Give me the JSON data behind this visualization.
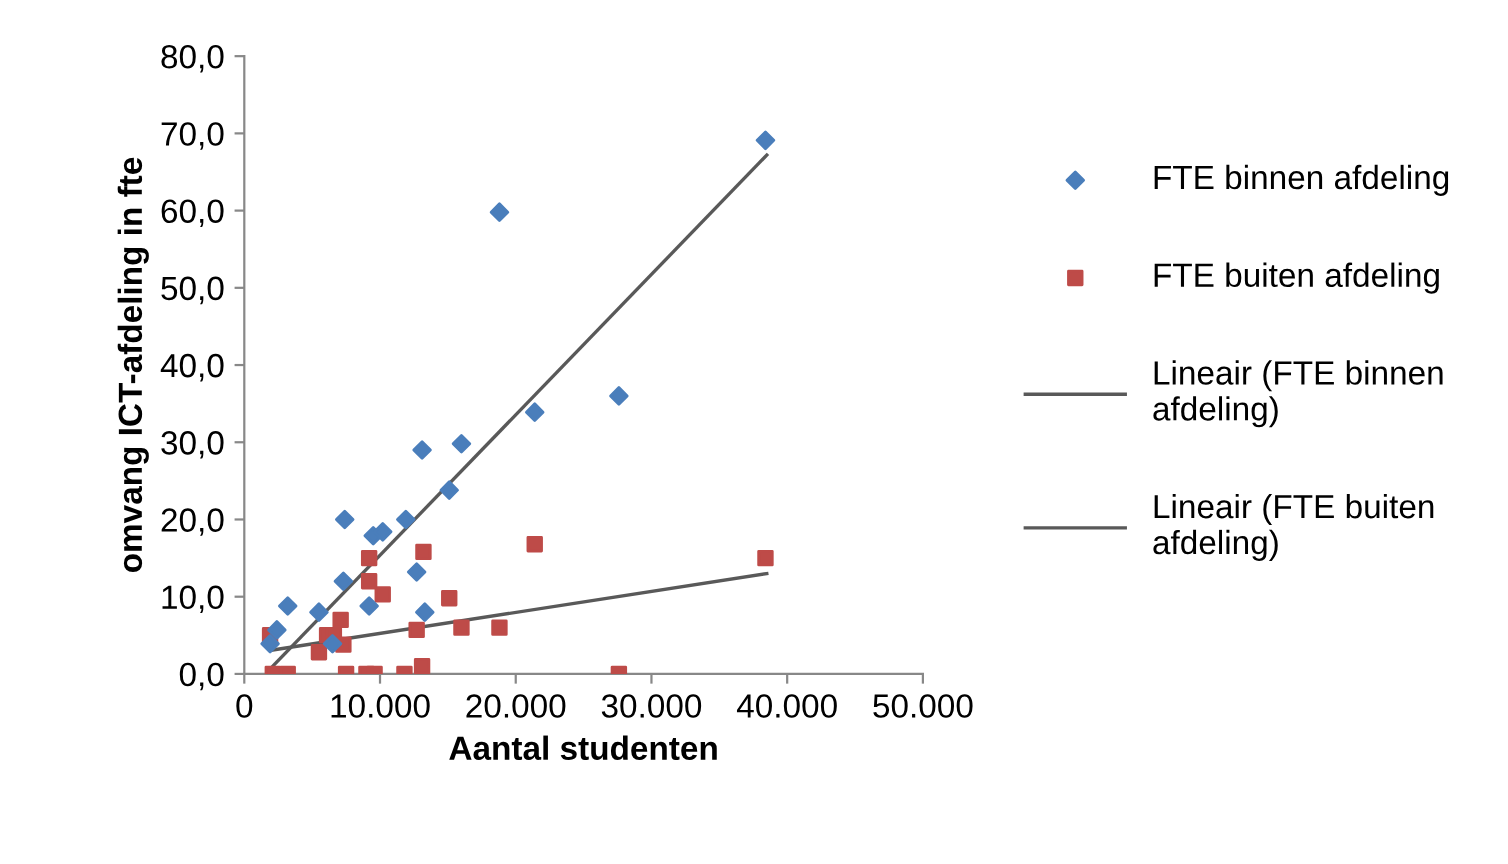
{
  "chart_data": {
    "type": "scatter",
    "xlabel": "Aantal studenten",
    "ylabel": "omvang ICT-afdeling in fte",
    "xlim": [
      0,
      50000
    ],
    "ylim": [
      0,
      80
    ],
    "xticks": [
      {
        "value": 0,
        "label": "0"
      },
      {
        "value": 10000,
        "label": "10.000"
      },
      {
        "value": 20000,
        "label": "20.000"
      },
      {
        "value": 30000,
        "label": "30.000"
      },
      {
        "value": 40000,
        "label": "40.000"
      },
      {
        "value": 50000,
        "label": "50.000"
      }
    ],
    "yticks": [
      {
        "value": 0,
        "label": "0,0"
      },
      {
        "value": 10,
        "label": "10,0"
      },
      {
        "value": 20,
        "label": "20,0"
      },
      {
        "value": 30,
        "label": "30,0"
      },
      {
        "value": 40,
        "label": "40,0"
      },
      {
        "value": 50,
        "label": "50,0"
      },
      {
        "value": 60,
        "label": "60,0"
      },
      {
        "value": 70,
        "label": "70,0"
      },
      {
        "value": 80,
        "label": "80,0"
      }
    ],
    "grid": false,
    "legend": "right",
    "series": [
      {
        "name": "FTE binnen afdeling",
        "color": "#4a7ebb",
        "marker": "diamond",
        "x": [
          1900,
          2400,
          3200,
          5500,
          6500,
          7400,
          7300,
          9200,
          9500,
          10200,
          11900,
          12700,
          13100,
          13300,
          15100,
          16000,
          18800,
          21400,
          27600,
          38400
        ],
        "values": [
          3.9,
          5.7,
          8.8,
          8.0,
          3.9,
          20.0,
          12.0,
          8.8,
          17.9,
          18.4,
          20.0,
          13.2,
          29.0,
          8.0,
          23.8,
          29.8,
          59.8,
          33.9,
          36.0,
          69.1
        ]
      },
      {
        "name": "FTE buiten afdeling",
        "color": "#be4b48",
        "marker": "square",
        "x": [
          1900,
          2100,
          3200,
          5500,
          6100,
          6600,
          7100,
          7300,
          7500,
          9200,
          9200,
          9000,
          9600,
          10200,
          11800,
          12700,
          13100,
          13200,
          15100,
          16000,
          18800,
          21400,
          27600,
          38400
        ],
        "values": [
          5.0,
          0,
          0,
          2.8,
          5.0,
          5.0,
          7.0,
          3.8,
          0,
          15.0,
          12.0,
          0,
          0,
          10.3,
          0,
          5.7,
          1.0,
          15.8,
          9.8,
          6.0,
          6.0,
          16.8,
          0,
          15.0
        ]
      },
      {
        "name": "Lineair (FTE binnen afdeling)",
        "type": "line",
        "color": "#595959",
        "x": [
          2100,
          38500
        ],
        "values": [
          1.0,
          67.2
        ]
      },
      {
        "name": "Lineair (FTE buiten afdeling)",
        "type": "line",
        "color": "#595959",
        "x": [
          2100,
          38500
        ],
        "values": [
          3.1,
          13.0
        ]
      }
    ]
  }
}
